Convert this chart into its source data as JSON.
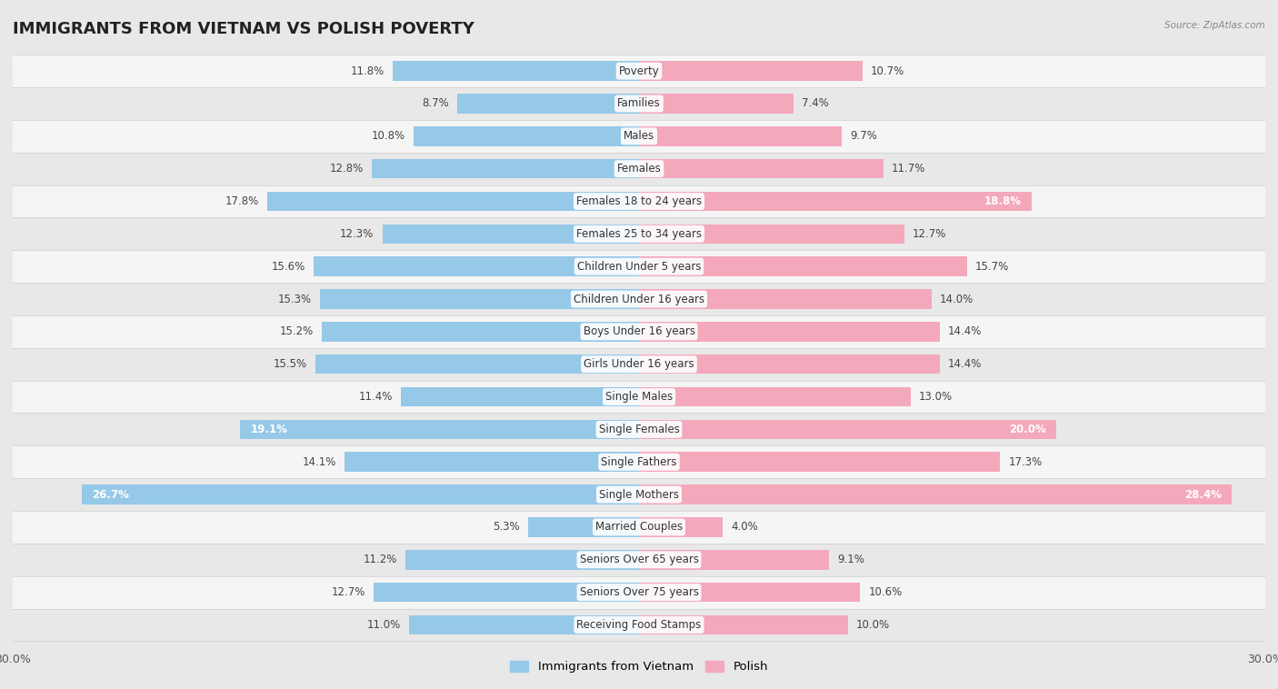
{
  "title": "IMMIGRANTS FROM VIETNAM VS POLISH POVERTY",
  "source": "Source: ZipAtlas.com",
  "categories": [
    "Poverty",
    "Families",
    "Males",
    "Females",
    "Females 18 to 24 years",
    "Females 25 to 34 years",
    "Children Under 5 years",
    "Children Under 16 years",
    "Boys Under 16 years",
    "Girls Under 16 years",
    "Single Males",
    "Single Females",
    "Single Fathers",
    "Single Mothers",
    "Married Couples",
    "Seniors Over 65 years",
    "Seniors Over 75 years",
    "Receiving Food Stamps"
  ],
  "vietnam_values": [
    11.8,
    8.7,
    10.8,
    12.8,
    17.8,
    12.3,
    15.6,
    15.3,
    15.2,
    15.5,
    11.4,
    19.1,
    14.1,
    26.7,
    5.3,
    11.2,
    12.7,
    11.0
  ],
  "polish_values": [
    10.7,
    7.4,
    9.7,
    11.7,
    18.8,
    12.7,
    15.7,
    14.0,
    14.4,
    14.4,
    13.0,
    20.0,
    17.3,
    28.4,
    4.0,
    9.1,
    10.6,
    10.0
  ],
  "vietnam_color": "#96c8e8",
  "polish_color": "#f4a8bc",
  "vietnam_label": "Immigrants from Vietnam",
  "polish_label": "Polish",
  "background_color": "#e8e8e8",
  "row_color_even": "#f5f5f5",
  "row_color_odd": "#e8e8e8",
  "x_max": 30.0,
  "title_fontsize": 13,
  "cat_fontsize": 8.5,
  "value_fontsize": 8.5,
  "axis_label_fontsize": 9,
  "inside_threshold_vietnam": 18.0,
  "inside_threshold_polish": 18.0
}
